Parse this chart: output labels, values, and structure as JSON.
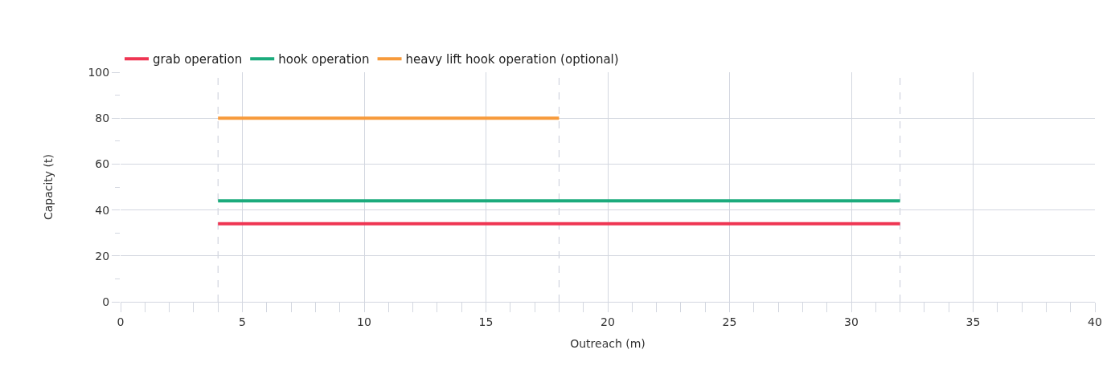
{
  "chart_data": {
    "type": "line",
    "xlabel": "Outreach (m)",
    "ylabel": "Capacity (t)",
    "series": [
      {
        "name": "grab operation",
        "color": "#ef3552",
        "x": [
          4,
          32
        ],
        "values": [
          34,
          34
        ]
      },
      {
        "name": "hook operation",
        "color": "#1bab7c",
        "x": [
          4,
          32
        ],
        "values": [
          44,
          44
        ]
      },
      {
        "name": "heavy lift hook operation (optional)",
        "color": "#f79a3b",
        "x": [
          4,
          18
        ],
        "values": [
          80,
          80
        ]
      }
    ],
    "xlim": [
      0,
      40
    ],
    "xticks": [
      0,
      5,
      10,
      15,
      20,
      25,
      30,
      35,
      40
    ],
    "ylim": [
      0,
      100
    ],
    "yticks": [
      0,
      20,
      40,
      60,
      80,
      100
    ],
    "ref_lines": [
      {
        "axis": "x",
        "value": 4,
        "color": "#c8ccd8",
        "line_style": "dashed"
      },
      {
        "axis": "x",
        "value": 18,
        "color": "#c8ccd8",
        "line_style": "dashed"
      },
      {
        "axis": "x",
        "value": 32,
        "color": "#c8ccd8",
        "line_style": "dashed"
      }
    ],
    "grid": true,
    "legend": "top left",
    "marker": "none",
    "line_style": "solid"
  }
}
